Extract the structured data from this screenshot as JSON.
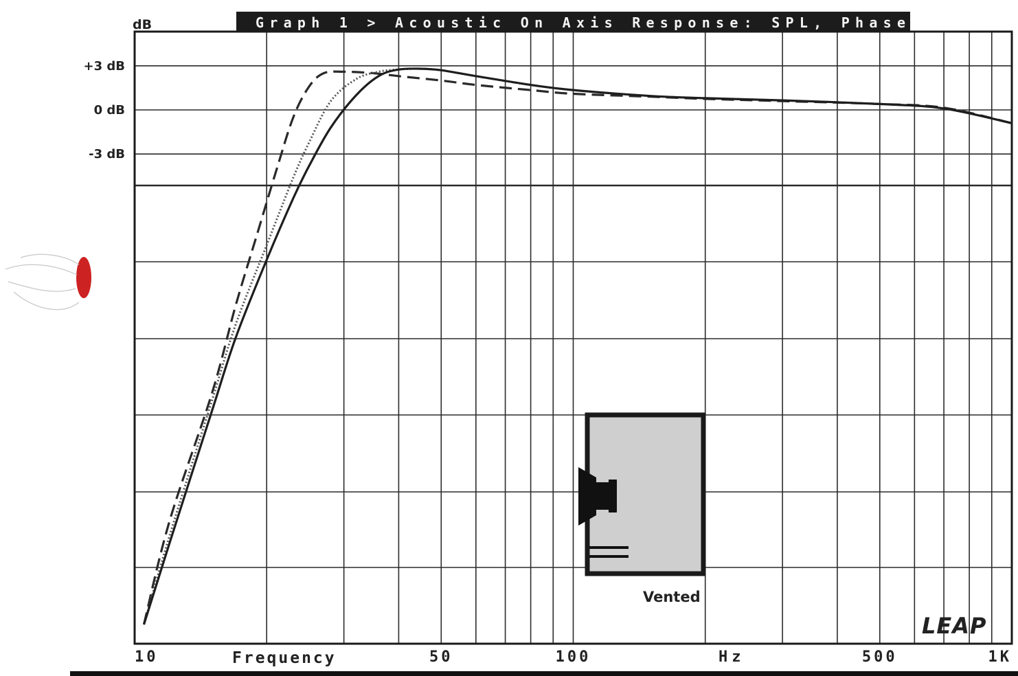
{
  "chart_data": {
    "type": "line",
    "title": "Graph 1 > Acoustic On Axis Response: SPL, Phase",
    "ylabel": "dB",
    "xlabel": "Frequency",
    "x_unit": "Hz",
    "x_scale": "log",
    "xlim": [
      10,
      1000
    ],
    "ylim": [
      -38,
      5
    ],
    "x_tick_labels": [
      {
        "x": 10,
        "label": "10"
      },
      {
        "x": 50,
        "label": "50"
      },
      {
        "x": 100,
        "label": "100"
      },
      {
        "x": 500,
        "label": "500"
      },
      {
        "x": 1000,
        "label": "1K"
      }
    ],
    "y_tick_labels": [
      {
        "y": 3,
        "label": "+3 dB"
      },
      {
        "y": 0,
        "label": "0 dB"
      },
      {
        "y": -3,
        "label": "-3 dB"
      }
    ],
    "grid": true,
    "series": [
      {
        "style": "dashed",
        "color": "#2a2a2a",
        "points": [
          [
            10.5,
            -35
          ],
          [
            12,
            -28
          ],
          [
            15,
            -19.3
          ],
          [
            17,
            -13.3
          ],
          [
            19,
            -8.5
          ],
          [
            21,
            -4.2
          ],
          [
            23,
            -0.5
          ],
          [
            25,
            1.6
          ],
          [
            27,
            2.5
          ],
          [
            30,
            2.6
          ],
          [
            35,
            2.5
          ],
          [
            40,
            2.3
          ],
          [
            50,
            2.0
          ],
          [
            60,
            1.7
          ],
          [
            80,
            1.35
          ],
          [
            100,
            1.1
          ],
          [
            150,
            0.9
          ],
          [
            200,
            0.75
          ],
          [
            300,
            0.6
          ],
          [
            500,
            0.4
          ],
          [
            700,
            0.15
          ],
          [
            1000,
            -0.9
          ]
        ]
      },
      {
        "style": "dotted",
        "color": "#555555",
        "points": [
          [
            10.5,
            -35
          ],
          [
            12,
            -29
          ],
          [
            15,
            -19.8
          ],
          [
            17,
            -14.6
          ],
          [
            20,
            -9.2
          ],
          [
            23,
            -4.6
          ],
          [
            25,
            -2.2
          ],
          [
            28,
            0.6
          ],
          [
            32,
            2.1
          ],
          [
            36,
            2.6
          ],
          [
            40,
            2.75
          ],
          [
            45,
            2.8
          ],
          [
            50,
            2.7
          ],
          [
            60,
            2.3
          ],
          [
            80,
            1.7
          ],
          [
            100,
            1.35
          ],
          [
            150,
            0.95
          ],
          [
            200,
            0.8
          ],
          [
            300,
            0.65
          ],
          [
            500,
            0.4
          ],
          [
            700,
            0.1
          ],
          [
            1000,
            -0.9
          ]
        ]
      },
      {
        "style": "solid",
        "color": "#1e1e1e",
        "points": [
          [
            10.5,
            -35
          ],
          [
            12,
            -29.5
          ],
          [
            15,
            -20.5
          ],
          [
            17,
            -15.5
          ],
          [
            20,
            -10.2
          ],
          [
            23,
            -6
          ],
          [
            25,
            -3.8
          ],
          [
            28,
            -1.2
          ],
          [
            32,
            1.0
          ],
          [
            36,
            2.3
          ],
          [
            40,
            2.75
          ],
          [
            45,
            2.8
          ],
          [
            50,
            2.7
          ],
          [
            60,
            2.3
          ],
          [
            80,
            1.7
          ],
          [
            100,
            1.35
          ],
          [
            150,
            0.95
          ],
          [
            200,
            0.8
          ],
          [
            300,
            0.65
          ],
          [
            500,
            0.4
          ],
          [
            700,
            0.1
          ],
          [
            1000,
            -0.9
          ]
        ]
      }
    ]
  },
  "inset": {
    "label": "Vented"
  },
  "logo": {
    "text": "LEAP"
  }
}
